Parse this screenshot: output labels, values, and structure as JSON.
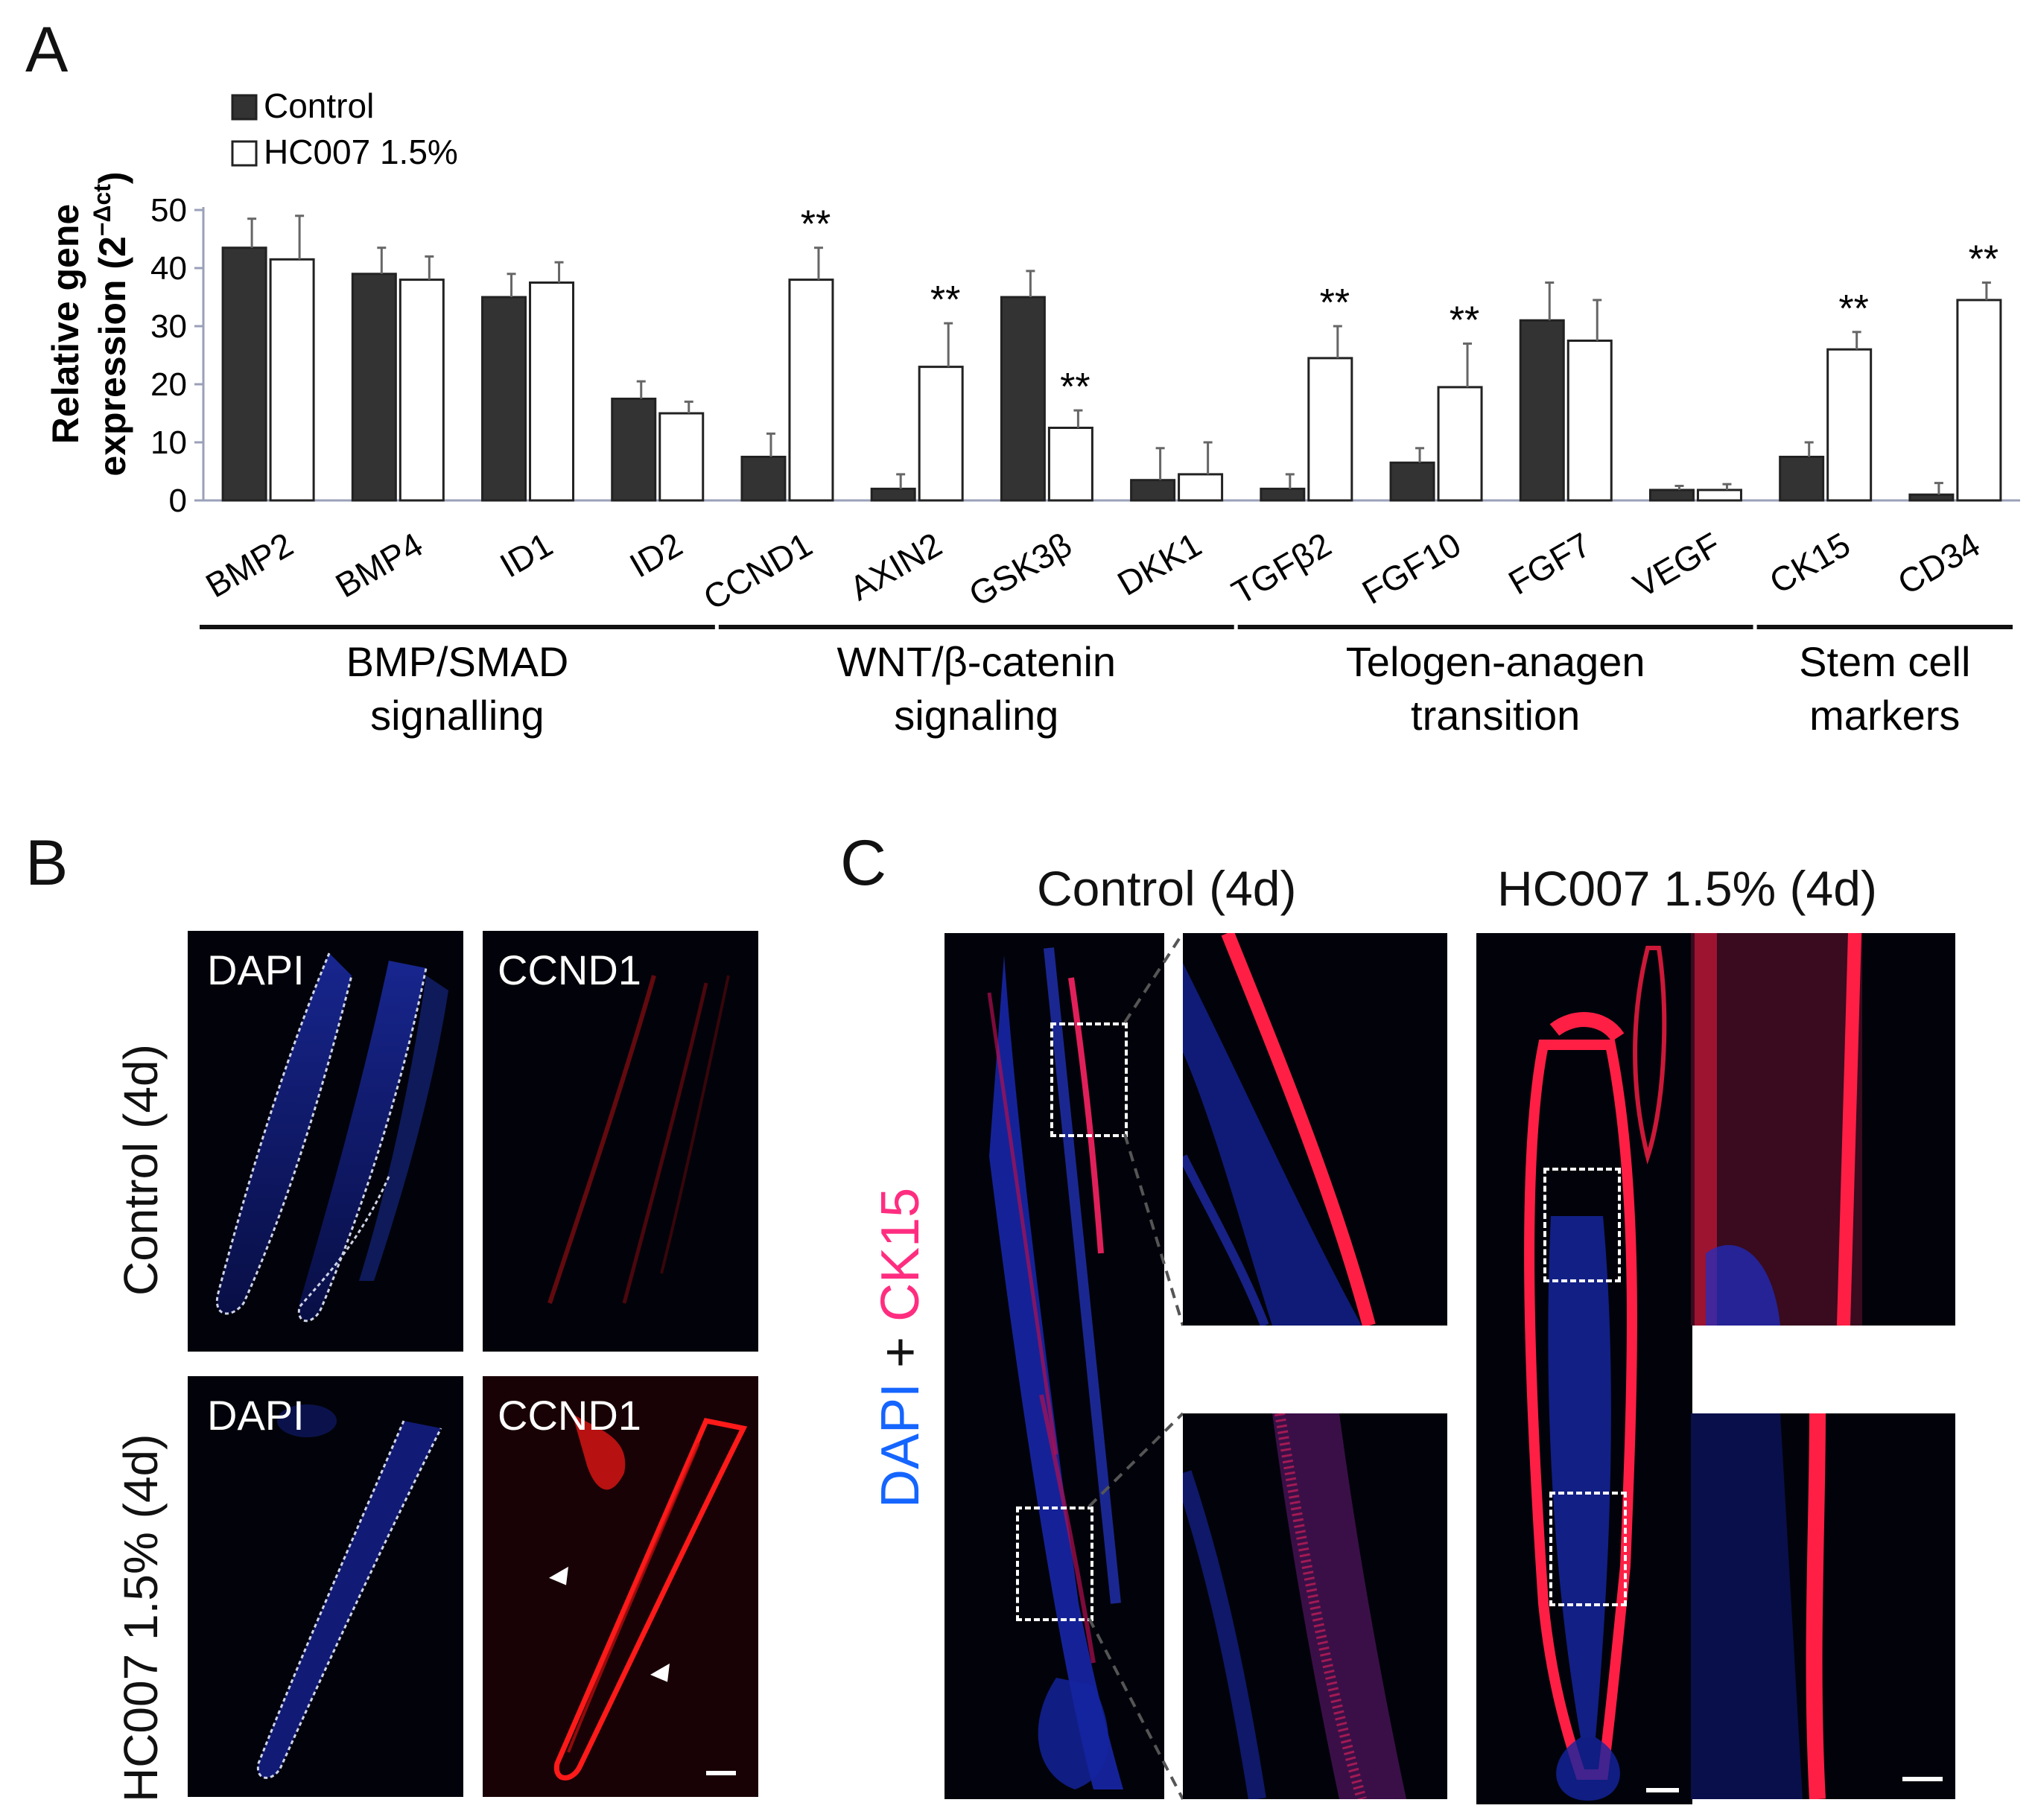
{
  "panels": {
    "a": "A",
    "b": "B",
    "c": "C"
  },
  "chart_data": {
    "type": "bar",
    "ylabel_line1": "Relative gene",
    "ylabel_line2": "expression (2",
    "ylabel_sup": "−Δct",
    "ylabel_close": ")",
    "ylim": [
      0,
      50
    ],
    "yticks": [
      0,
      10,
      20,
      30,
      40,
      50
    ],
    "grid": false,
    "legend_position": "top-left",
    "categories": [
      "BMP2",
      "BMP4",
      "ID1",
      "ID2",
      "CCND1",
      "AXIN2",
      "GSK3β",
      "DKK1",
      "TGFβ2",
      "FGF10",
      "FGF7",
      "VEGF",
      "CK15",
      "CD34"
    ],
    "series": [
      {
        "name": "Control",
        "color": "#333333",
        "values": [
          43.5,
          39,
          35,
          17.5,
          7.5,
          2,
          35,
          3.5,
          2,
          6.5,
          31,
          1.8,
          7.5,
          1
        ],
        "errors": [
          5,
          4.5,
          4,
          3,
          4,
          2.5,
          4.5,
          5.5,
          2.5,
          2.5,
          6.5,
          0.7,
          2.5,
          2
        ]
      },
      {
        "name": "HC007 1.5%",
        "color": "#ffffff",
        "values": [
          41.5,
          38,
          37.5,
          15,
          38,
          23,
          12.5,
          4.5,
          24.5,
          19.5,
          27.5,
          1.8,
          26,
          34.5
        ],
        "errors": [
          7.5,
          4,
          3.5,
          2,
          5.5,
          7.5,
          3,
          5.5,
          5.5,
          7.5,
          7,
          1,
          3,
          3
        ]
      }
    ],
    "significance": [
      "",
      "",
      "",
      "",
      "**",
      "**",
      "**",
      "",
      "**",
      "**",
      "",
      "",
      "**",
      "**"
    ],
    "groups": [
      {
        "line1": "BMP/SMAD",
        "line2": "signalling",
        "start": 0,
        "end": 3
      },
      {
        "line1": "WNT/β-catenin",
        "line2": "signaling",
        "start": 4,
        "end": 7
      },
      {
        "line1": "Telogen-anagen",
        "line2": "transition",
        "start": 8,
        "end": 11
      },
      {
        "line1": "Stem cell",
        "line2": "markers",
        "start": 12,
        "end": 13
      }
    ]
  },
  "panel_b": {
    "row_labels": [
      "Control (4d)",
      "HC007 1.5% (4d)"
    ],
    "channel_dapi": "DAPI",
    "channel_ccnd1": "CCND1"
  },
  "panel_c": {
    "title_control": "Control (4d)",
    "title_hc007": "HC007 1.5% (4d)",
    "side_dapi": "DAPI",
    "side_plus": "+",
    "side_ck15": "CK15",
    "colors": {
      "dapi": "#1565ff",
      "ck15": "#ff2d80"
    }
  }
}
